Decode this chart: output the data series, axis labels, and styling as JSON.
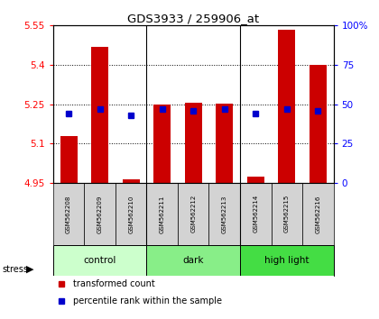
{
  "title": "GDS3933 / 259906_at",
  "samples": [
    "GSM562208",
    "GSM562209",
    "GSM562210",
    "GSM562211",
    "GSM562212",
    "GSM562213",
    "GSM562214",
    "GSM562215",
    "GSM562216"
  ],
  "transformed_counts": [
    5.13,
    5.47,
    4.965,
    5.25,
    5.255,
    5.252,
    4.975,
    5.535,
    5.4
  ],
  "percentile_ranks": [
    44,
    47,
    43,
    47,
    46,
    47,
    44,
    47,
    46
  ],
  "groups": [
    {
      "label": "control",
      "start": 0,
      "end": 3,
      "color": "#ccffcc"
    },
    {
      "label": "dark",
      "start": 3,
      "end": 6,
      "color": "#88ee88"
    },
    {
      "label": "high light",
      "start": 6,
      "end": 9,
      "color": "#44dd44"
    }
  ],
  "bar_bottom": 4.95,
  "ylim_left": [
    4.95,
    5.55
  ],
  "ylim_right": [
    0,
    100
  ],
  "yticks_left": [
    4.95,
    5.1,
    5.25,
    5.4,
    5.55
  ],
  "yticks_right": [
    0,
    25,
    50,
    75,
    100
  ],
  "bar_color": "#cc0000",
  "percentile_color": "#0000cc",
  "bar_width": 0.55,
  "stress_label": "stress",
  "legend_items": [
    {
      "color": "#cc0000",
      "label": "transformed count"
    },
    {
      "color": "#0000cc",
      "label": "percentile rank within the sample"
    }
  ]
}
